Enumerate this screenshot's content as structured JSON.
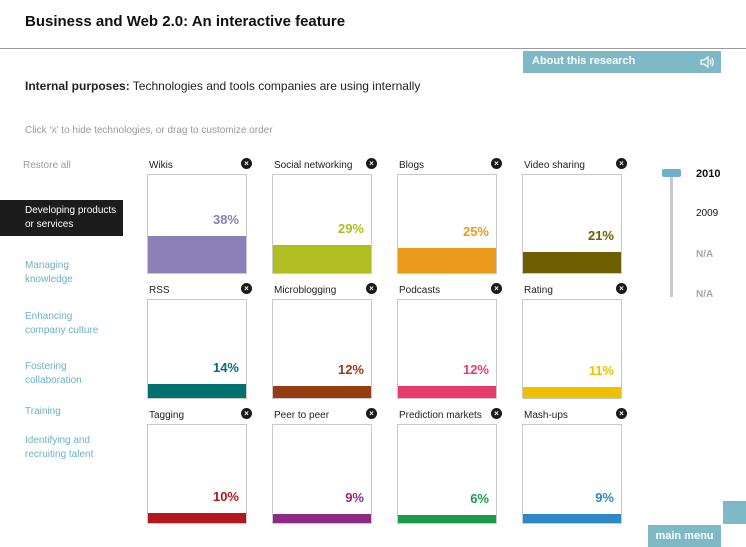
{
  "header": {
    "title": "Business and Web 2.0:  An interactive feature"
  },
  "about": {
    "label": "About this research"
  },
  "subtitle": {
    "label": "Internal purposes:",
    "text": " Technologies and tools companies are using internally"
  },
  "hint": "Click ‘x’ to hide technologies, or drag to customize order",
  "sidebar": {
    "restore": "Restore all",
    "items": [
      {
        "label": "Developing products  or services",
        "active": true
      },
      {
        "label": "Managing knowledge",
        "active": false
      },
      {
        "label": "Enhancing company culture",
        "active": false
      },
      {
        "label": "Fostering collaboration",
        "active": false
      },
      {
        "label": "Training",
        "active": false
      },
      {
        "label": "Identifying  and recruiting talent",
        "active": false
      }
    ]
  },
  "tiles": [
    {
      "name": "Wikis",
      "percent": "38%",
      "value": 38,
      "color": "#8b80b8"
    },
    {
      "name": "Social networking",
      "percent": "29%",
      "value": 29,
      "color": "#b2bd22"
    },
    {
      "name": "Blogs",
      "percent": "25%",
      "value": 25,
      "color": "#eb9a1c"
    },
    {
      "name": "Video sharing",
      "percent": "21%",
      "value": 21,
      "color": "#6e6000"
    },
    {
      "name": "RSS",
      "percent": "14%",
      "value": 14,
      "color": "#007070"
    },
    {
      "name": "Microblogging",
      "percent": "12%",
      "value": 12,
      "color": "#963c13"
    },
    {
      "name": "Podcasts",
      "percent": "12%",
      "value": 12,
      "color": "#e63c6c"
    },
    {
      "name": "Rating",
      "percent": "11%",
      "value": 11,
      "color": "#edc000"
    },
    {
      "name": "Tagging",
      "percent": "10%",
      "value": 10,
      "color": "#b5171e"
    },
    {
      "name": "Peer to peer",
      "percent": "9%",
      "value": 9,
      "color": "#8c2a86"
    },
    {
      "name": "Prediction markets",
      "percent": "6%",
      "value": 6,
      "color": "#1c9a4d"
    },
    {
      "name": "Mash-ups",
      "percent": "9%",
      "value": 9,
      "color": "#2d88c5"
    }
  ],
  "years": [
    {
      "label": "2010",
      "state": "active"
    },
    {
      "label": "2009",
      "state": "normal"
    },
    {
      "label": "N/A",
      "state": "na"
    },
    {
      "label": "N/A",
      "state": "na"
    }
  ],
  "main_menu": {
    "label": "main menu"
  },
  "colors": {
    "accent": "#7fb9c6",
    "link": "#6db0c7",
    "active_bg": "#1c1c1c"
  }
}
